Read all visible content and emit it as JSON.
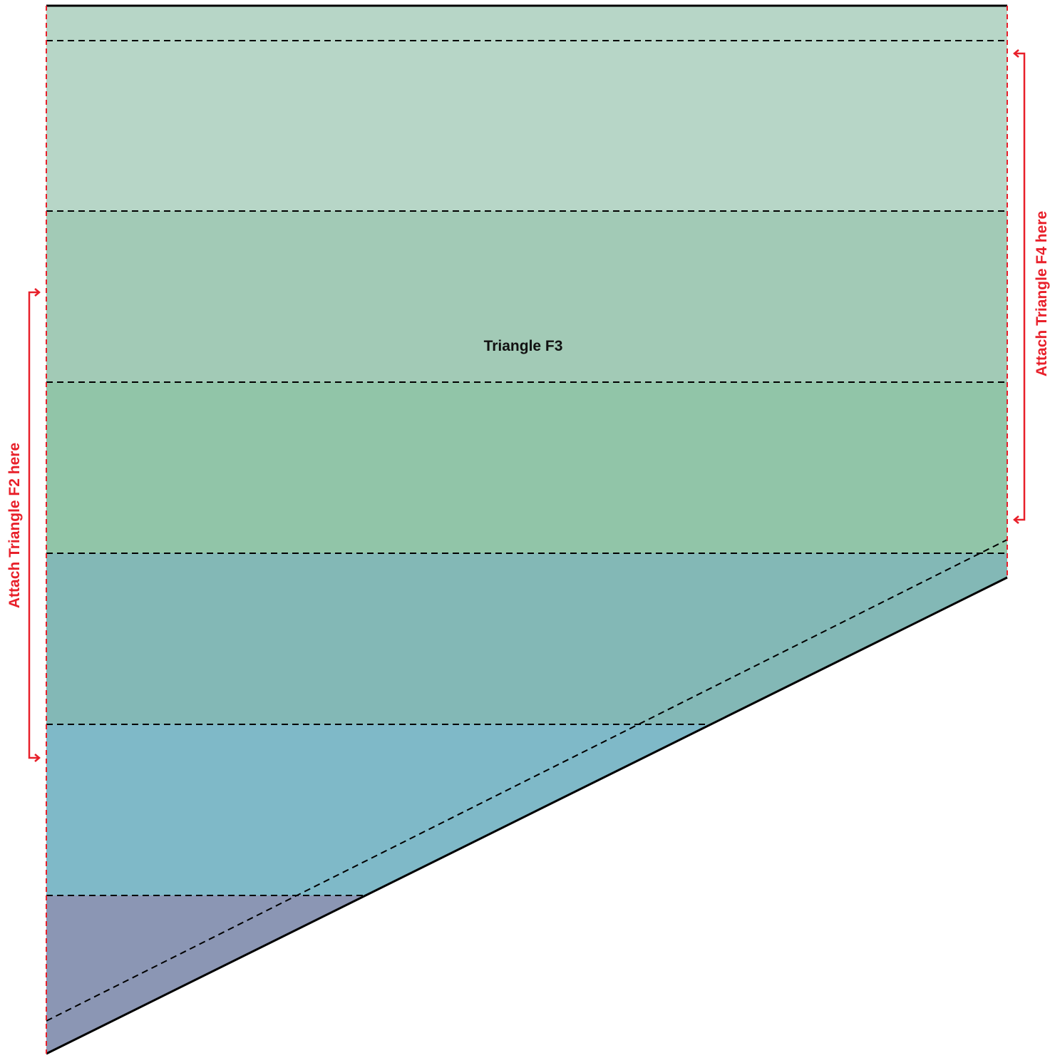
{
  "piece": {
    "label": "Triangle F3"
  },
  "attach_left": {
    "text": "Attach Triangle F2 here"
  },
  "attach_right": {
    "text": "Attach Triangle F4 here"
  },
  "colors": {
    "band_1": "#b7d6c7",
    "band_2": "#a2cab6",
    "band_3": "#91c5a8",
    "band_4": "#83b8b6",
    "band_5": "#7fb9c8",
    "band_6": "#8b96b4",
    "outline": "#000000",
    "fold_line": "#000000",
    "attach_marker": "#e8202a",
    "label_text": "#111111"
  }
}
